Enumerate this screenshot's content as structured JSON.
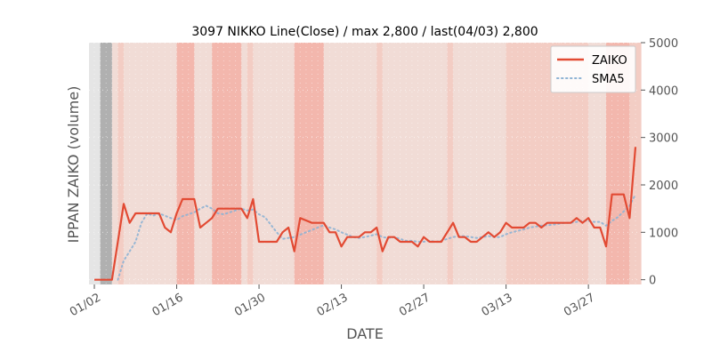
{
  "chart_data": {
    "type": "line",
    "title": "3097 NIKKO Line(Close) / max 2,800 / last(04/03) 2,800",
    "xlabel": "DATE",
    "ylabel": "IPPAN ZAIKO (volume)",
    "ylim": [
      -100,
      5000
    ],
    "yticks": [
      0,
      1000,
      2000,
      3000,
      4000,
      5000
    ],
    "ytick_labels": [
      "0",
      "1000",
      "2000",
      "3000",
      "4000",
      "5000"
    ],
    "y_axis_side": "right",
    "xticks": [
      {
        "label": "01/02",
        "index": 0
      },
      {
        "label": "01/16",
        "index": 14
      },
      {
        "label": "01/30",
        "index": 28
      },
      {
        "label": "02/13",
        "index": 42
      },
      {
        "label": "02/27",
        "index": 56
      },
      {
        "label": "03/13",
        "index": 70
      },
      {
        "label": "03/27",
        "index": 84
      }
    ],
    "grid": true,
    "legend_position": "top-right",
    "series": [
      {
        "name": "ZAIKO",
        "color": "#e24a33",
        "style": "solid",
        "values": [
          0,
          0,
          0,
          0,
          800,
          1600,
          1200,
          1400,
          1400,
          1400,
          1400,
          1400,
          1100,
          1000,
          1400,
          1700,
          1700,
          1700,
          1100,
          1200,
          1300,
          1500,
          1500,
          1500,
          1500,
          1500,
          1300,
          1700,
          800,
          800,
          800,
          800,
          1000,
          1100,
          600,
          1300,
          1250,
          1200,
          1200,
          1200,
          1000,
          1000,
          700,
          900,
          900,
          900,
          1000,
          1000,
          1100,
          600,
          900,
          900,
          800,
          800,
          800,
          700,
          900,
          800,
          800,
          800,
          1000,
          1200,
          900,
          900,
          800,
          800,
          900,
          1000,
          900,
          1000,
          1200,
          1100,
          1100,
          1100,
          1200,
          1200,
          1100,
          1200,
          1200,
          1200,
          1200,
          1200,
          1300,
          1200,
          1300,
          1100,
          1100,
          700,
          1800,
          1800,
          1800,
          1300,
          2800
        ]
      },
      {
        "name": "SMA5",
        "color": "#8eb3d4",
        "style": "dotted",
        "values": [
          null,
          null,
          null,
          null,
          0,
          400,
          600,
          800,
          1200,
          1400,
          1350,
          1400,
          1350,
          1300,
          1260,
          1340,
          1380,
          1420,
          1500,
          1560,
          1500,
          1400,
          1380,
          1420,
          1460,
          1500,
          1460,
          1480,
          1380,
          1320,
          1160,
          1000,
          860,
          880,
          900,
          950,
          1000,
          1050,
          1100,
          1150,
          1100,
          1060,
          1000,
          950,
          900,
          880,
          900,
          930,
          960,
          900,
          880,
          900,
          860,
          820,
          820,
          800,
          800,
          820,
          800,
          820,
          860,
          900,
          920,
          920,
          900,
          880,
          900,
          920,
          900,
          900,
          960,
          1000,
          1030,
          1060,
          1100,
          1120,
          1140,
          1150,
          1160,
          1180,
          1200,
          1200,
          1220,
          1240,
          1240,
          1220,
          1220,
          1140,
          1240,
          1320,
          1440,
          1560,
          1800
        ]
      }
    ],
    "background_shading": {
      "gray_range": [
        1,
        3
      ],
      "base_color": "#f1dcd6",
      "deep_color": "#f3b7ad",
      "mid_color": "#f3cdc4",
      "segments": [
        {
          "start": 4,
          "end": 5,
          "level": "mid"
        },
        {
          "start": 14,
          "end": 17,
          "level": "deep"
        },
        {
          "start": 20,
          "end": 25,
          "level": "deep"
        },
        {
          "start": 26,
          "end": 27,
          "level": "mid"
        },
        {
          "start": 34,
          "end": 39,
          "level": "deep"
        },
        {
          "start": 48,
          "end": 49,
          "level": "mid"
        },
        {
          "start": 60,
          "end": 61,
          "level": "mid"
        },
        {
          "start": 70,
          "end": 84,
          "level": "mid"
        },
        {
          "start": 87,
          "end": 91,
          "level": "deep"
        },
        {
          "start": 91,
          "end": 93,
          "level": "mid"
        }
      ]
    }
  }
}
